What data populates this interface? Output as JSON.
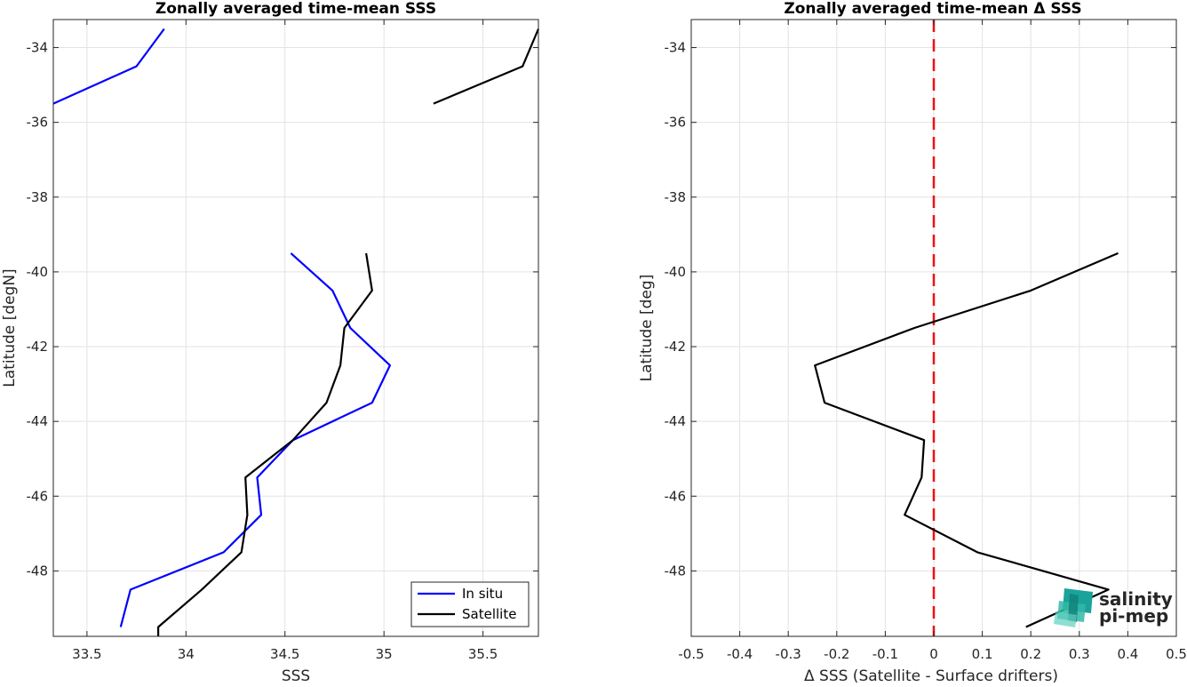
{
  "chart_data": [
    {
      "type": "line",
      "title": "Zonally averaged time-mean SSS",
      "xlabel": "SSS",
      "ylabel": "Latitude [degN]",
      "xlim": [
        33.33,
        35.78
      ],
      "ylim": [
        -49.75,
        -33.25
      ],
      "xticks": [
        33.5,
        34,
        34.5,
        35,
        35.5
      ],
      "xtick_labels": [
        "33.5",
        "34",
        "34.5",
        "35",
        "35.5"
      ],
      "yticks": [
        -48,
        -46,
        -44,
        -42,
        -40,
        -38,
        -36,
        -34
      ],
      "ytick_labels": [
        "-48",
        "-46",
        "-44",
        "-42",
        "-40",
        "-38",
        "-36",
        "-34"
      ],
      "grid": true,
      "legend_position": "bottom-right",
      "series": [
        {
          "name": "In situ",
          "color": "#0000ff",
          "segments": [
            {
              "x": [
                33.33,
                33.75,
                33.89
              ],
              "y": [
                -35.5,
                -34.5,
                -33.5
              ]
            },
            {
              "x": [
                34.53,
                34.74,
                34.83,
                35.03,
                34.94,
                34.54,
                34.36,
                34.38,
                34.19,
                33.72,
                33.67
              ],
              "y": [
                -39.5,
                -40.5,
                -41.5,
                -42.5,
                -43.5,
                -44.5,
                -45.5,
                -46.5,
                -47.5,
                -48.5,
                -49.5
              ]
            }
          ]
        },
        {
          "name": "Satellite",
          "color": "#000000",
          "segments": [
            {
              "x": [
                35.25,
                35.7,
                35.78
              ],
              "y": [
                -35.5,
                -34.5,
                -33.5
              ]
            },
            {
              "x": [
                34.91,
                34.94,
                34.8,
                34.78,
                34.71,
                34.54,
                34.3,
                34.31,
                34.28,
                34.08,
                33.86,
                33.86
              ],
              "y": [
                -39.5,
                -40.5,
                -41.5,
                -42.5,
                -43.5,
                -44.5,
                -45.5,
                -46.5,
                -47.5,
                -48.5,
                -49.5,
                -49.75
              ]
            }
          ]
        }
      ]
    },
    {
      "type": "line",
      "title": "Zonally averaged time-mean Δ SSS",
      "xlabel": "Δ SSS (Satellite - Surface drifters)",
      "ylabel": "Latitude [deg]",
      "xlim": [
        -0.5,
        0.5
      ],
      "ylim": [
        -49.75,
        -33.25
      ],
      "xticks": [
        -0.5,
        -0.4,
        -0.3,
        -0.2,
        -0.1,
        0,
        0.1,
        0.2,
        0.3,
        0.4,
        0.5
      ],
      "xtick_labels": [
        "-0.5",
        "-0.4",
        "-0.3",
        "-0.2",
        "-0.1",
        "0",
        "0.1",
        "0.2",
        "0.3",
        "0.4",
        "0.5"
      ],
      "yticks": [
        -48,
        -46,
        -44,
        -42,
        -40,
        -38,
        -36,
        -34
      ],
      "ytick_labels": [
        "-48",
        "-46",
        "-44",
        "-42",
        "-40",
        "-38",
        "-36",
        "-34"
      ],
      "grid": true,
      "reference_line": {
        "x": 0,
        "color": "#ee1111",
        "style": "dashed"
      },
      "series": [
        {
          "color": "#000000",
          "segments": [
            {
              "x": [
                0.38,
                0.2,
                -0.04,
                -0.245,
                -0.225,
                -0.02,
                -0.025,
                -0.06,
                0.09,
                0.36,
                0.19
              ],
              "y": [
                -39.5,
                -40.5,
                -41.5,
                -42.5,
                -43.5,
                -44.5,
                -45.5,
                -46.5,
                -47.5,
                -48.5,
                -49.5
              ]
            }
          ]
        }
      ]
    }
  ],
  "logo": {
    "line1": "salinity",
    "line2": "pi-mep",
    "colors": [
      "#1aa39a",
      "#33b8a8",
      "#0f7f78",
      "#5fcfc0"
    ]
  }
}
